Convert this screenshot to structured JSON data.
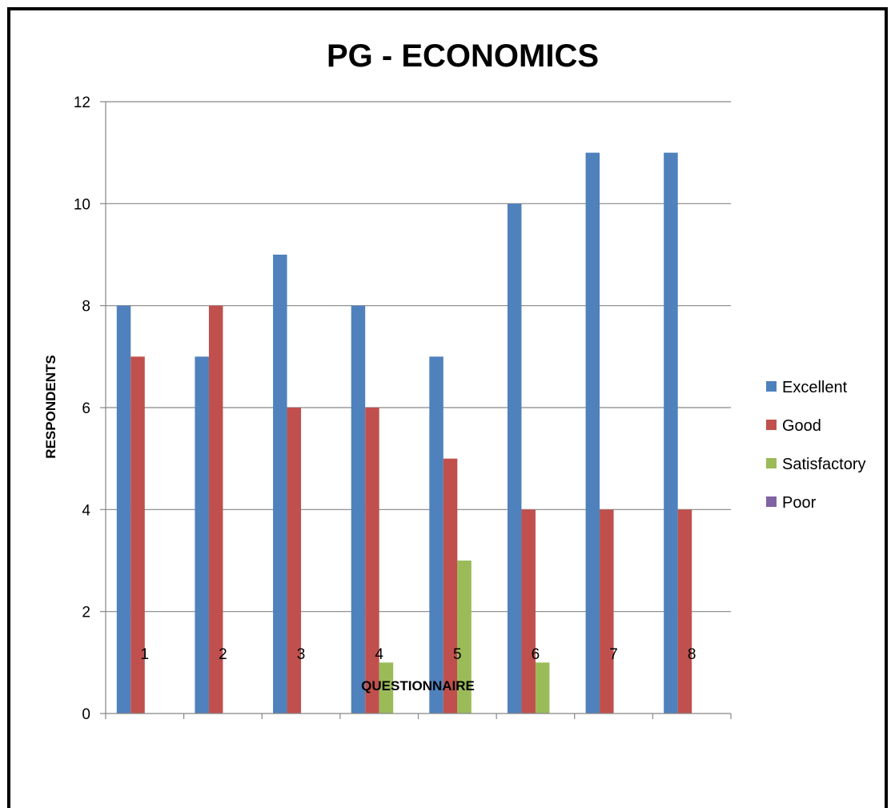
{
  "chart_data": {
    "type": "bar",
    "title": "PG - ECONOMICS",
    "xlabel": "QUESTIONNAIRE",
    "ylabel": "RESPONDENTS",
    "categories": [
      "1",
      "2",
      "3",
      "4",
      "5",
      "6",
      "7",
      "8"
    ],
    "ylim": [
      0,
      12
    ],
    "yticks": [
      0,
      2,
      4,
      6,
      8,
      10,
      12
    ],
    "grid": "horizontal",
    "legend_position": "right",
    "series": [
      {
        "name": "Excellent",
        "color": "#4F81BD",
        "values": [
          8,
          7,
          9,
          8,
          7,
          10,
          11,
          11
        ]
      },
      {
        "name": "Good",
        "color": "#C0504D",
        "values": [
          7,
          8,
          6,
          6,
          5,
          4,
          4,
          4
        ]
      },
      {
        "name": "Satisfactory",
        "color": "#9BBB59",
        "values": [
          0,
          0,
          0,
          1,
          3,
          1,
          0,
          0
        ]
      },
      {
        "name": "Poor",
        "color": "#8064A2",
        "values": [
          0,
          0,
          0,
          0,
          0,
          0,
          0,
          0
        ]
      }
    ]
  }
}
